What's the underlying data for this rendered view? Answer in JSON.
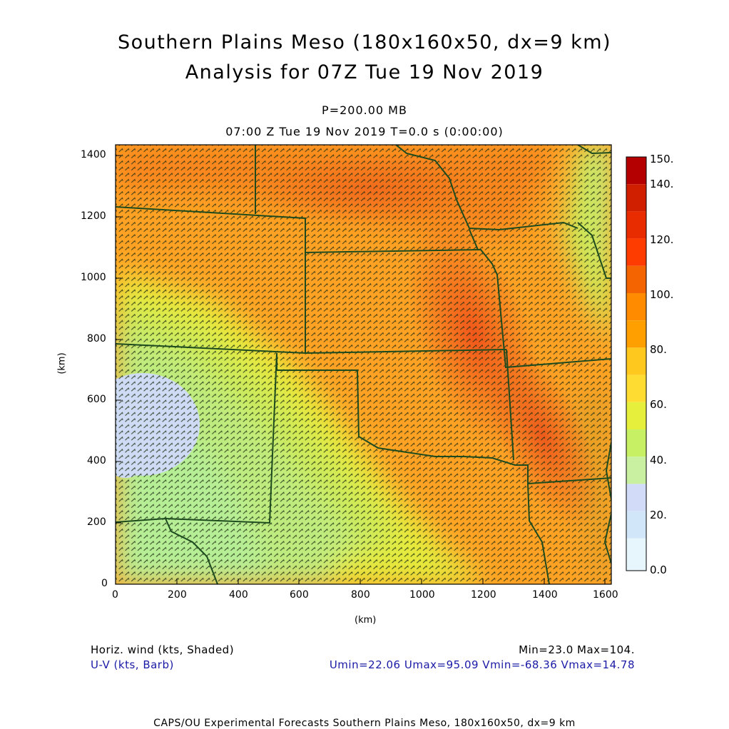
{
  "header": {
    "title_line1": "Southern Plains Meso (180x160x50, dx=9 km)",
    "title_line2": "Analysis for 07Z Tue 19 Nov 2019",
    "level": "P=200.00 MB",
    "valid_time": "07:00 Z Tue 19 Nov 2019    T=0.0 s (0:00:00)"
  },
  "axes": {
    "x_label": "(km)",
    "y_label": "(km)",
    "x_ticks": [
      "0",
      "200",
      "400",
      "600",
      "800",
      "1000",
      "1200",
      "1400",
      "1600"
    ],
    "y_ticks": [
      "0",
      "200",
      "400",
      "600",
      "800",
      "1000",
      "1200",
      "1400"
    ],
    "x_range": [
      0,
      1620
    ],
    "y_range": [
      0,
      1440
    ]
  },
  "colorbar": {
    "labels": [
      "150.",
      "140.",
      "120.",
      "100.",
      "80.",
      "60.",
      "40.",
      "20.",
      "0.0"
    ],
    "colors": [
      "#b40000",
      "#d01e00",
      "#e82c00",
      "#ff3c00",
      "#f46400",
      "#ff8c00",
      "#ffa000",
      "#ffc81e",
      "#ffdc32",
      "#e6f03c",
      "#c8f064",
      "#b4f08c",
      "#c8f0a0",
      "#d2dcf8",
      "#d2e6fa",
      "#e6f6fc"
    ]
  },
  "footer": {
    "field1": "Horiz. wind (kts, Shaded)",
    "field2": "U-V (kts, Barb)",
    "stats1": "Min=23.0 Max=104.",
    "stats2": "Umin=22.06 Umax=95.09 Vmin=-68.36 Vmax=14.78",
    "credit": "CAPS/OU Experimental Forecasts  Southern Plains Meso, 180x160x50, dx=9 km"
  }
}
